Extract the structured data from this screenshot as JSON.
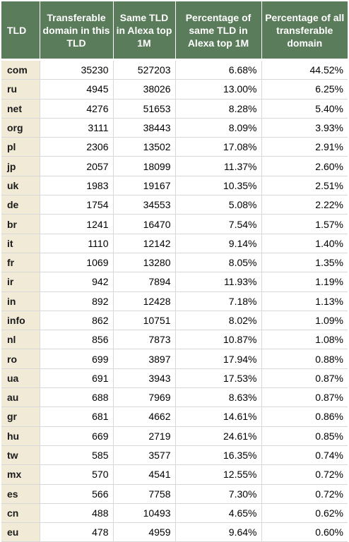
{
  "headers": {
    "tld": "TLD",
    "transferable": "Transferable domain in this TLD",
    "same_tld": "Same TLD in Alexa top 1M",
    "pct_same": "Percentage of same TLD in Alexa top 1M",
    "pct_all": "Percentage of all transferable domain"
  },
  "rows": [
    {
      "tld": "com",
      "transferable": "35230",
      "same_tld": "527203",
      "pct_same": "6.68%",
      "pct_all": "44.52%"
    },
    {
      "tld": "ru",
      "transferable": "4945",
      "same_tld": "38026",
      "pct_same": "13.00%",
      "pct_all": "6.25%"
    },
    {
      "tld": "net",
      "transferable": "4276",
      "same_tld": "51653",
      "pct_same": "8.28%",
      "pct_all": "5.40%"
    },
    {
      "tld": "org",
      "transferable": "3111",
      "same_tld": "38443",
      "pct_same": "8.09%",
      "pct_all": "3.93%"
    },
    {
      "tld": "pl",
      "transferable": "2306",
      "same_tld": "13502",
      "pct_same": "17.08%",
      "pct_all": "2.91%"
    },
    {
      "tld": "jp",
      "transferable": "2057",
      "same_tld": "18099",
      "pct_same": "11.37%",
      "pct_all": "2.60%"
    },
    {
      "tld": "uk",
      "transferable": "1983",
      "same_tld": "19167",
      "pct_same": "10.35%",
      "pct_all": "2.51%"
    },
    {
      "tld": "de",
      "transferable": "1754",
      "same_tld": "34553",
      "pct_same": "5.08%",
      "pct_all": "2.22%"
    },
    {
      "tld": "br",
      "transferable": "1241",
      "same_tld": "16470",
      "pct_same": "7.54%",
      "pct_all": "1.57%"
    },
    {
      "tld": "it",
      "transferable": "1110",
      "same_tld": "12142",
      "pct_same": "9.14%",
      "pct_all": "1.40%"
    },
    {
      "tld": "fr",
      "transferable": "1069",
      "same_tld": "13280",
      "pct_same": "8.05%",
      "pct_all": "1.35%"
    },
    {
      "tld": "ir",
      "transferable": "942",
      "same_tld": "7894",
      "pct_same": "11.93%",
      "pct_all": "1.19%"
    },
    {
      "tld": "in",
      "transferable": "892",
      "same_tld": "12428",
      "pct_same": "7.18%",
      "pct_all": "1.13%"
    },
    {
      "tld": "info",
      "transferable": "862",
      "same_tld": "10751",
      "pct_same": "8.02%",
      "pct_all": "1.09%"
    },
    {
      "tld": "nl",
      "transferable": "856",
      "same_tld": "7873",
      "pct_same": "10.87%",
      "pct_all": "1.08%"
    },
    {
      "tld": "ro",
      "transferable": "699",
      "same_tld": "3897",
      "pct_same": "17.94%",
      "pct_all": "0.88%"
    },
    {
      "tld": "ua",
      "transferable": "691",
      "same_tld": "3943",
      "pct_same": "17.53%",
      "pct_all": "0.87%"
    },
    {
      "tld": "au",
      "transferable": "688",
      "same_tld": "7969",
      "pct_same": "8.63%",
      "pct_all": "0.87%"
    },
    {
      "tld": "gr",
      "transferable": "681",
      "same_tld": "4662",
      "pct_same": "14.61%",
      "pct_all": "0.86%"
    },
    {
      "tld": "hu",
      "transferable": "669",
      "same_tld": "2719",
      "pct_same": "24.61%",
      "pct_all": "0.85%"
    },
    {
      "tld": "tw",
      "transferable": "585",
      "same_tld": "3577",
      "pct_same": "16.35%",
      "pct_all": "0.74%"
    },
    {
      "tld": "mx",
      "transferable": "570",
      "same_tld": "4541",
      "pct_same": "12.55%",
      "pct_all": "0.72%"
    },
    {
      "tld": "es",
      "transferable": "566",
      "same_tld": "7758",
      "pct_same": "7.30%",
      "pct_all": "0.72%"
    },
    {
      "tld": "cn",
      "transferable": "488",
      "same_tld": "10493",
      "pct_same": "4.65%",
      "pct_all": "0.62%"
    },
    {
      "tld": "eu",
      "transferable": "478",
      "same_tld": "4959",
      "pct_same": "9.64%",
      "pct_all": "0.60%"
    }
  ],
  "colors": {
    "header_bg": "#5a7c5b",
    "header_text": "#ffffff",
    "tld_column_bg": "#f1ead7"
  }
}
